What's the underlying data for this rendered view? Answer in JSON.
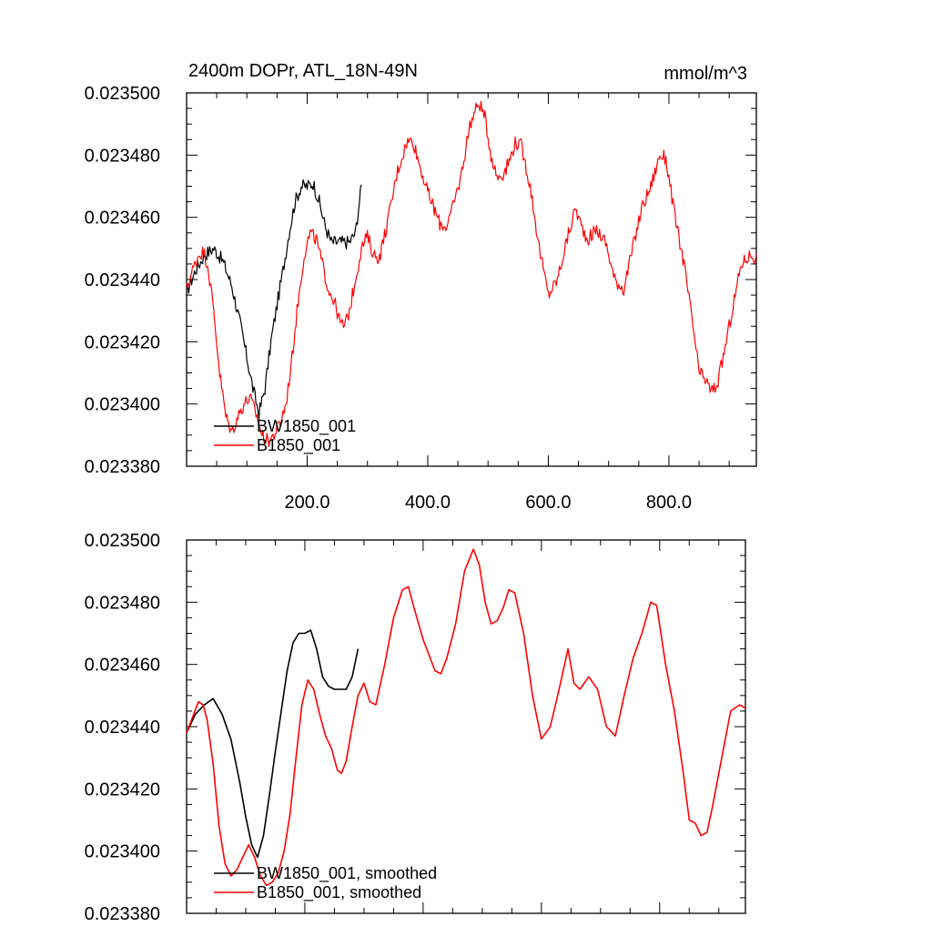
{
  "chart_data": [
    {
      "type": "line",
      "title": "2400m DOPr, ATL_18N-49N",
      "units": "mmol/m^3",
      "xlim": [
        0,
        945
      ],
      "ylim": [
        0.02338,
        0.0235
      ],
      "x_major_ticks": [
        200,
        400,
        600,
        800
      ],
      "x_tick_labels": [
        "200.0",
        "400.0",
        "600.0",
        "800.0"
      ],
      "y_major_ticks": [
        0.02338,
        0.0234,
        0.02342,
        0.02344,
        0.02346,
        0.02348,
        0.0235
      ],
      "y_tick_labels": [
        "0.023380",
        "0.023400",
        "0.023420",
        "0.023440",
        "0.023460",
        "0.023480",
        "0.023500"
      ],
      "noisy": true,
      "legend_position": "bottom-left",
      "series": [
        {
          "name": "BW1850_001",
          "color": "#000000",
          "points": [
            [
              0,
              0.023436
            ],
            [
              15,
              0.023443
            ],
            [
              30,
              0.023448
            ],
            [
              45,
              0.02345
            ],
            [
              60,
              0.023446
            ],
            [
              75,
              0.023438
            ],
            [
              90,
              0.023425
            ],
            [
              100,
              0.023415
            ],
            [
              110,
              0.023405
            ],
            [
              120,
              0.023397
            ],
            [
              130,
              0.023405
            ],
            [
              140,
              0.02342
            ],
            [
              150,
              0.023432
            ],
            [
              160,
              0.023443
            ],
            [
              170,
              0.023455
            ],
            [
              180,
              0.023465
            ],
            [
              190,
              0.02347
            ],
            [
              200,
              0.02347
            ],
            [
              210,
              0.023471
            ],
            [
              220,
              0.023465
            ],
            [
              230,
              0.023457
            ],
            [
              240,
              0.023452
            ],
            [
              250,
              0.023452
            ],
            [
              260,
              0.023452
            ],
            [
              270,
              0.023452
            ],
            [
              280,
              0.023455
            ],
            [
              290,
              0.02347
            ]
          ]
        },
        {
          "name": "B1850_001",
          "color": "#ff0000",
          "points": [
            [
              0,
              0.023437
            ],
            [
              10,
              0.023443
            ],
            [
              20,
              0.023448
            ],
            [
              28,
              0.023449
            ],
            [
              35,
              0.023445
            ],
            [
              45,
              0.02343
            ],
            [
              55,
              0.02341
            ],
            [
              65,
              0.023396
            ],
            [
              75,
              0.023391
            ],
            [
              85,
              0.023396
            ],
            [
              95,
              0.0234
            ],
            [
              105,
              0.023402
            ],
            [
              115,
              0.023397
            ],
            [
              125,
              0.02339
            ],
            [
              135,
              0.023388
            ],
            [
              145,
              0.02339
            ],
            [
              155,
              0.023394
            ],
            [
              165,
              0.0234
            ],
            [
              175,
              0.023415
            ],
            [
              185,
              0.023433
            ],
            [
              195,
              0.023448
            ],
            [
              205,
              0.023455
            ],
            [
              215,
              0.023453
            ],
            [
              225,
              0.023445
            ],
            [
              235,
              0.023437
            ],
            [
              245,
              0.023433
            ],
            [
              255,
              0.023426
            ],
            [
              262,
              0.023425
            ],
            [
              270,
              0.02343
            ],
            [
              280,
              0.02344
            ],
            [
              290,
              0.02345
            ],
            [
              300,
              0.023454
            ],
            [
              310,
              0.023448
            ],
            [
              320,
              0.023447
            ],
            [
              335,
              0.02346
            ],
            [
              350,
              0.023475
            ],
            [
              365,
              0.023484
            ],
            [
              375,
              0.023485
            ],
            [
              385,
              0.023478
            ],
            [
              400,
              0.023468
            ],
            [
              420,
              0.023458
            ],
            [
              430,
              0.023457
            ],
            [
              440,
              0.023462
            ],
            [
              455,
              0.023473
            ],
            [
              470,
              0.02349
            ],
            [
              485,
              0.023497
            ],
            [
              495,
              0.023492
            ],
            [
              505,
              0.02348
            ],
            [
              515,
              0.023473
            ],
            [
              525,
              0.023474
            ],
            [
              535,
              0.023478
            ],
            [
              545,
              0.023484
            ],
            [
              555,
              0.023483
            ],
            [
              570,
              0.02347
            ],
            [
              585,
              0.02345
            ],
            [
              600,
              0.023435
            ],
            [
              615,
              0.02344
            ],
            [
              630,
              0.023452
            ],
            [
              645,
              0.023463
            ],
            [
              655,
              0.023457
            ],
            [
              665,
              0.023453
            ],
            [
              680,
              0.023456
            ],
            [
              695,
              0.023452
            ],
            [
              710,
              0.02344
            ],
            [
              725,
              0.023437
            ],
            [
              740,
              0.02345
            ],
            [
              755,
              0.023463
            ],
            [
              770,
              0.02347
            ],
            [
              785,
              0.02348
            ],
            [
              795,
              0.023479
            ],
            [
              810,
              0.02346
            ],
            [
              825,
              0.023445
            ],
            [
              840,
              0.023425
            ],
            [
              850,
              0.02341
            ],
            [
              860,
              0.023408
            ],
            [
              870,
              0.023404
            ],
            [
              880,
              0.023406
            ],
            [
              890,
              0.023415
            ],
            [
              905,
              0.02343
            ],
            [
              920,
              0.023445
            ],
            [
              935,
              0.023448
            ],
            [
              945,
              0.023447
            ]
          ]
        }
      ]
    },
    {
      "type": "line",
      "xlim": [
        0,
        945
      ],
      "ylim": [
        0.02338,
        0.0235
      ],
      "x_major_ticks": [
        200,
        400,
        600,
        800
      ],
      "x_tick_labels": [],
      "y_major_ticks": [
        0.02338,
        0.0234,
        0.02342,
        0.02344,
        0.02346,
        0.02348,
        0.0235
      ],
      "y_tick_labels": [
        "0.023380",
        "0.023400",
        "0.023420",
        "0.023440",
        "0.023460",
        "0.023480",
        "0.023500"
      ],
      "noisy": false,
      "legend_position": "bottom-left",
      "series": [
        {
          "name": "BW1850_001, smoothed",
          "color": "#000000",
          "points": [
            [
              0,
              0.023438
            ],
            [
              15,
              0.023444
            ],
            [
              30,
              0.023447
            ],
            [
              45,
              0.023449
            ],
            [
              60,
              0.023444
            ],
            [
              75,
              0.023436
            ],
            [
              90,
              0.023422
            ],
            [
              100,
              0.023411
            ],
            [
              110,
              0.023402
            ],
            [
              120,
              0.023398
            ],
            [
              130,
              0.023405
            ],
            [
              140,
              0.023418
            ],
            [
              150,
              0.023432
            ],
            [
              160,
              0.023445
            ],
            [
              170,
              0.023458
            ],
            [
              180,
              0.023467
            ],
            [
              190,
              0.02347
            ],
            [
              200,
              0.02347
            ],
            [
              210,
              0.023471
            ],
            [
              220,
              0.023465
            ],
            [
              230,
              0.023456
            ],
            [
              240,
              0.023453
            ],
            [
              250,
              0.023452
            ],
            [
              260,
              0.023452
            ],
            [
              270,
              0.023452
            ],
            [
              280,
              0.023456
            ],
            [
              290,
              0.023465
            ]
          ]
        },
        {
          "name": "B1850_001, smoothed",
          "color": "#ff0000",
          "points": [
            [
              0,
              0.023438
            ],
            [
              10,
              0.023443
            ],
            [
              20,
              0.023448
            ],
            [
              28,
              0.023447
            ],
            [
              35,
              0.023442
            ],
            [
              45,
              0.023428
            ],
            [
              55,
              0.023408
            ],
            [
              65,
              0.023396
            ],
            [
              75,
              0.023392
            ],
            [
              85,
              0.023394
            ],
            [
              95,
              0.023398
            ],
            [
              105,
              0.023402
            ],
            [
              115,
              0.023398
            ],
            [
              125,
              0.023392
            ],
            [
              135,
              0.023389
            ],
            [
              145,
              0.02339
            ],
            [
              155,
              0.023393
            ],
            [
              165,
              0.0234
            ],
            [
              175,
              0.023412
            ],
            [
              185,
              0.02343
            ],
            [
              195,
              0.023447
            ],
            [
              205,
              0.023455
            ],
            [
              215,
              0.023452
            ],
            [
              225,
              0.023444
            ],
            [
              235,
              0.023437
            ],
            [
              245,
              0.023433
            ],
            [
              255,
              0.023426
            ],
            [
              262,
              0.023425
            ],
            [
              270,
              0.023429
            ],
            [
              280,
              0.02344
            ],
            [
              290,
              0.02345
            ],
            [
              300,
              0.023454
            ],
            [
              310,
              0.023448
            ],
            [
              320,
              0.023447
            ],
            [
              335,
              0.02346
            ],
            [
              350,
              0.023475
            ],
            [
              365,
              0.023484
            ],
            [
              375,
              0.023485
            ],
            [
              385,
              0.023478
            ],
            [
              400,
              0.023468
            ],
            [
              420,
              0.023458
            ],
            [
              430,
              0.023457
            ],
            [
              440,
              0.023462
            ],
            [
              455,
              0.023473
            ],
            [
              470,
              0.02349
            ],
            [
              485,
              0.023497
            ],
            [
              495,
              0.023492
            ],
            [
              505,
              0.02348
            ],
            [
              515,
              0.023473
            ],
            [
              525,
              0.023474
            ],
            [
              535,
              0.023478
            ],
            [
              545,
              0.023484
            ],
            [
              555,
              0.023483
            ],
            [
              570,
              0.02347
            ],
            [
              585,
              0.02345
            ],
            [
              600,
              0.023436
            ],
            [
              615,
              0.02344
            ],
            [
              630,
              0.023452
            ],
            [
              645,
              0.023465
            ],
            [
              655,
              0.023454
            ],
            [
              665,
              0.023452
            ],
            [
              680,
              0.023456
            ],
            [
              695,
              0.023452
            ],
            [
              710,
              0.02344
            ],
            [
              725,
              0.023437
            ],
            [
              740,
              0.02345
            ],
            [
              755,
              0.023462
            ],
            [
              770,
              0.02347
            ],
            [
              785,
              0.02348
            ],
            [
              795,
              0.023479
            ],
            [
              810,
              0.02346
            ],
            [
              825,
              0.023445
            ],
            [
              840,
              0.023425
            ],
            [
              850,
              0.02341
            ],
            [
              860,
              0.023409
            ],
            [
              870,
              0.023405
            ],
            [
              880,
              0.023406
            ],
            [
              890,
              0.023415
            ],
            [
              905,
              0.02343
            ],
            [
              920,
              0.023445
            ],
            [
              935,
              0.023447
            ],
            [
              945,
              0.023446
            ]
          ]
        }
      ]
    }
  ]
}
